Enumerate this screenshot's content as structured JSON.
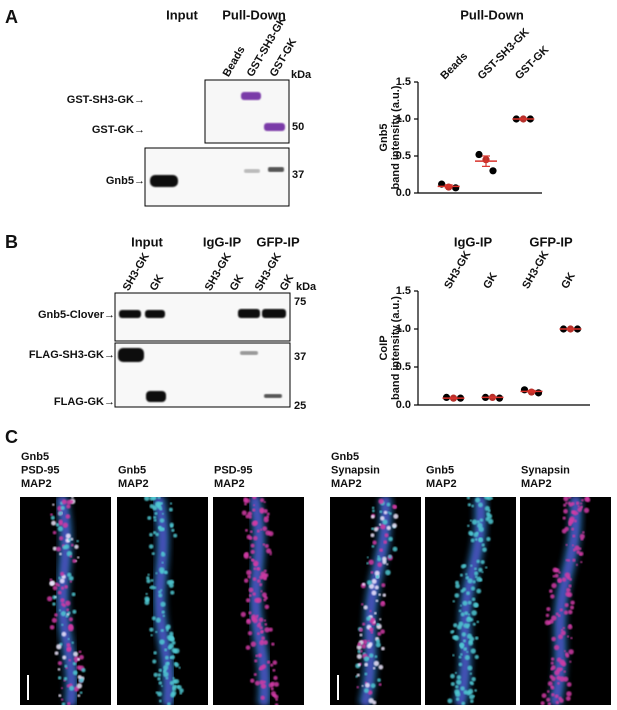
{
  "panel_a": {
    "label": "A",
    "headers": [
      "Input",
      "Pull-Down"
    ],
    "lanes": [
      "Beads",
      "GST-SH3-GK",
      "GST-GK"
    ],
    "kda": "kDa",
    "band_labels": [
      "GST-SH3-GK→",
      "GST-GK→",
      "Gnb5→"
    ],
    "markers": [
      "50",
      "37"
    ]
  },
  "panel_b": {
    "label": "B",
    "headers": [
      "Input",
      "IgG-IP",
      "GFP-IP"
    ],
    "lanes": [
      "SH3-GK",
      "GK",
      "SH3-GK",
      "GK",
      "SH3-GK",
      "GK"
    ],
    "kda": "kDa",
    "band_labels": [
      "Gnb5-Clover→",
      "FLAG-SH3-GK→",
      "FLAG-GK→"
    ],
    "markers": [
      "75",
      "37",
      "25"
    ]
  },
  "panel_c": {
    "label": "C",
    "images": [
      {
        "channels": [
          {
            "name": "Gnb5",
            "color": "#4fc9d3"
          },
          {
            "name": "PSD-95",
            "color": "#d23aa6"
          },
          {
            "name": "MAP2",
            "color": "#2a6fb5"
          }
        ]
      },
      {
        "channels": [
          {
            "name": "Gnb5",
            "color": "#4fc9d3"
          },
          {
            "name": "MAP2",
            "color": "#2a6fb5"
          }
        ]
      },
      {
        "channels": [
          {
            "name": "PSD-95",
            "color": "#d23aa6"
          },
          {
            "name": "MAP2",
            "color": "#2a6fb5"
          }
        ]
      },
      {
        "channels": [
          {
            "name": "Gnb5",
            "color": "#4fc9d3"
          },
          {
            "name": "Synapsin",
            "color": "#d23aa6"
          },
          {
            "name": "MAP2",
            "color": "#2a6fb5"
          }
        ]
      },
      {
        "channels": [
          {
            "name": "Gnb5",
            "color": "#4fc9d3"
          },
          {
            "name": "MAP2",
            "color": "#2a6fb5"
          }
        ]
      },
      {
        "channels": [
          {
            "name": "Synapsin",
            "color": "#d23aa6"
          },
          {
            "name": "MAP2",
            "color": "#2a6fb5"
          }
        ]
      }
    ]
  },
  "chart_data": [
    {
      "type": "dot",
      "title": "Pull-Down",
      "ylabel": [
        "Gnb5",
        "band intensity (a.u.)"
      ],
      "categories": [
        "Beads",
        "GST-SH3-GK",
        "GST-GK"
      ],
      "points": [
        [
          0.12,
          0.08,
          0.07
        ],
        [
          0.52,
          0.45,
          0.3
        ],
        [
          1,
          1,
          1
        ]
      ],
      "point_colors": [
        "#000000",
        "#b5302a",
        "#000000"
      ],
      "means": [
        0.09,
        0.43,
        1
      ],
      "errors": [
        0.02,
        0.07,
        0
      ],
      "mean_color": "#d8322b",
      "ylim": [
        0,
        1.5
      ],
      "yticks": [
        {
          "value": 0,
          "label": "0.0"
        },
        {
          "value": 0.5,
          "label": "0.5"
        },
        {
          "value": 1,
          "label": "1.0"
        },
        {
          "value": 1.5,
          "label": "1.5"
        }
      ]
    },
    {
      "type": "dot",
      "groups": [
        "IgG-IP",
        "GFP-IP"
      ],
      "ylabel": [
        "CoIP",
        "band intensity (a.u.)"
      ],
      "categories": [
        "SH3-GK",
        "GK",
        "SH3-GK",
        "GK"
      ],
      "points": [
        [
          0.1,
          0.09,
          0.09
        ],
        [
          0.1,
          0.1,
          0.09
        ],
        [
          0.2,
          0.17,
          0.16
        ],
        [
          1,
          1,
          1
        ]
      ],
      "point_colors": [
        "#000000",
        "#b5302a",
        "#000000"
      ],
      "means": [
        0.09,
        0.1,
        0.18,
        1
      ],
      "errors": [
        0.004,
        0.003,
        0.012,
        0
      ],
      "mean_color": "#d8322b",
      "ylim": [
        0,
        1.5
      ],
      "yticks": [
        {
          "value": 0,
          "label": "0.0"
        },
        {
          "value": 0.5,
          "label": "0.5"
        },
        {
          "value": 1,
          "label": "1.0"
        },
        {
          "value": 1.5,
          "label": "1.5"
        }
      ]
    }
  ]
}
